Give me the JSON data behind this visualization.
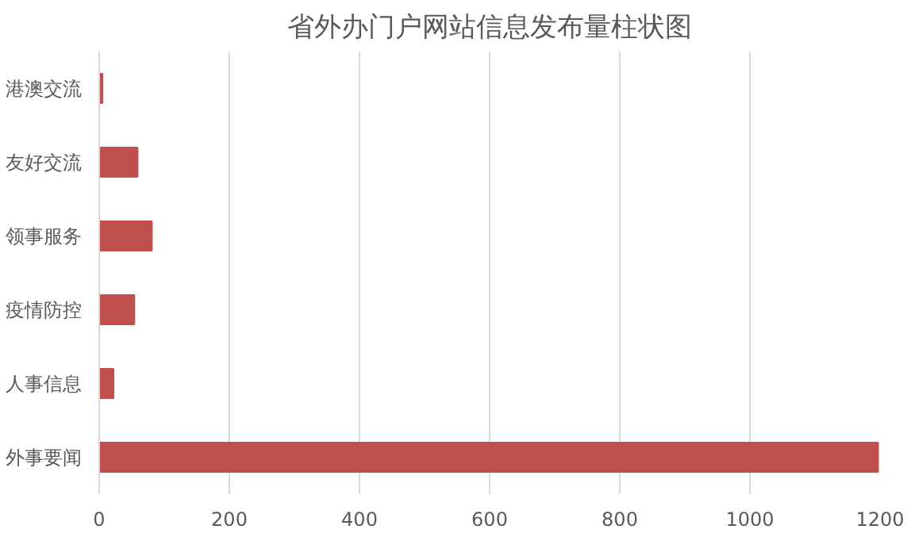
{
  "chart_data": {
    "type": "bar",
    "orientation": "horizontal",
    "title": "省外办门户网站信息发布量柱状图",
    "categories": [
      "港澳交流",
      "友好交流",
      "领事服务",
      "疫情防控",
      "人事信息",
      "外事要闻"
    ],
    "values": [
      5,
      59,
      81,
      54,
      22,
      1197
    ],
    "color": "#c0504d",
    "xlim": [
      0,
      1200
    ],
    "xticks": [
      0,
      200,
      400,
      600,
      800,
      1000,
      1200
    ],
    "grid": "x"
  }
}
